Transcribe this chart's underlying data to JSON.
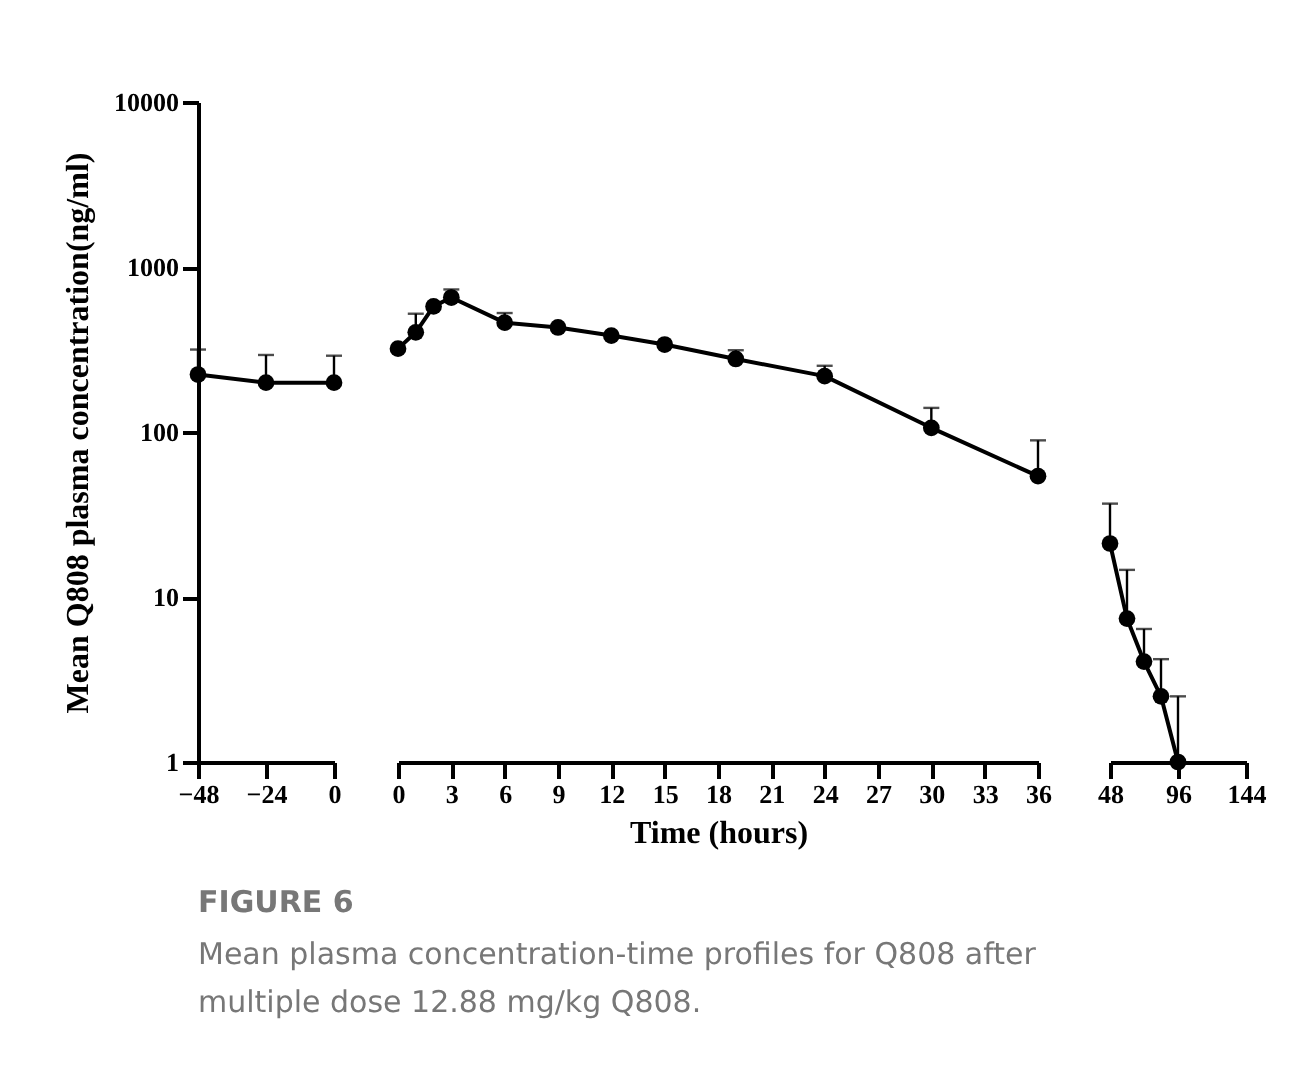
{
  "chart_data": [
    {
      "type": "line",
      "ylabel": "Mean Q808 plasma concentration(ng/ml)",
      "x": [
        -48,
        -24,
        0
      ],
      "xlim": [
        -48,
        0
      ],
      "xticks": [
        -48,
        -24,
        0
      ],
      "ylim": [
        1,
        10000
      ],
      "yticks": [
        1,
        10,
        100,
        1000,
        10000
      ],
      "log": true,
      "grid": false,
      "marker": "circle",
      "line_style": "solid",
      "series": [
        {
          "color": "#000000",
          "values": [
            223,
            199,
            199
          ],
          "errors": [
            [
              223,
              316
            ],
            [
              199,
              293
            ],
            [
              199,
              290
            ]
          ]
        }
      ],
      "annotations": [
        "FIGURE 6",
        "Mean plasma concentration-time profiles for Q808 after multiple dose 12.88 mg/kg Q808."
      ]
    },
    {
      "type": "line",
      "xlabel": "Time (hours)",
      "x": [
        0,
        1,
        2,
        3,
        6,
        9,
        12,
        15,
        19,
        24,
        30,
        36
      ],
      "xlim": [
        0,
        36
      ],
      "xticks": [
        0,
        3,
        6,
        9,
        12,
        15,
        18,
        21,
        24,
        27,
        30,
        33,
        36
      ],
      "ylim": [
        1,
        10000
      ],
      "log": true,
      "grid": false,
      "marker": "circle",
      "line_style": "solid",
      "tick_labels": "x",
      "series": [
        {
          "color": "#000000",
          "values": [
            320,
            402,
            577,
            653,
            460,
            430,
            384,
            339,
            277,
            218,
            106,
            54
          ],
          "errors": [
            null,
            [
              402,
              521
            ],
            null,
            [
              653,
              731
            ],
            [
              460,
              526
            ],
            null,
            null,
            null,
            [
              277,
              313
            ],
            [
              218,
              252
            ],
            [
              106,
              140
            ],
            [
              54,
              89
            ]
          ]
        }
      ]
    },
    {
      "type": "line",
      "x": [
        48,
        60,
        72,
        84,
        96
      ],
      "xlim": [
        48,
        144
      ],
      "xticks": [
        48,
        96,
        144
      ],
      "ylim": [
        1,
        10000
      ],
      "log": true,
      "grid": false,
      "marker": "circle",
      "line_style": "solid",
      "tick_labels": "x",
      "series": [
        {
          "color": "#000000",
          "values": [
            21.1,
            7.4,
            4.06,
            2.5,
            1
          ],
          "errors": [
            [
              21.1,
              36.8
            ],
            [
              7.4,
              14.6
            ],
            [
              4.06,
              6.4
            ],
            [
              2.5,
              4.2
            ],
            [
              1,
              2.5
            ]
          ]
        }
      ]
    }
  ]
}
